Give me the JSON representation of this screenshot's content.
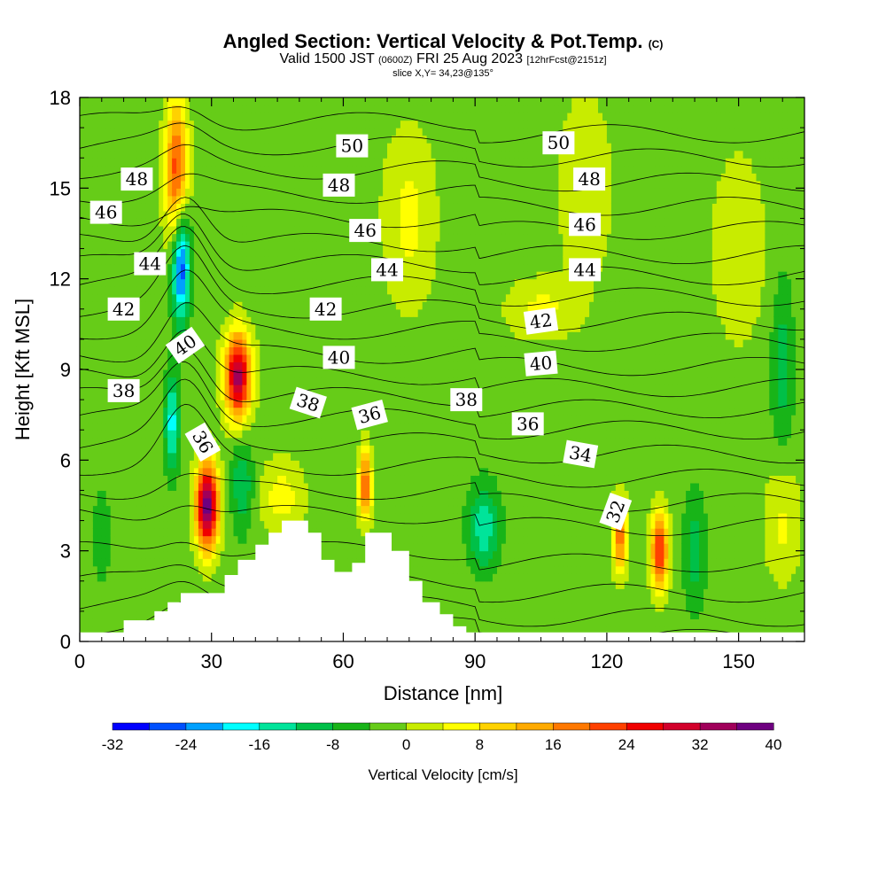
{
  "header": {
    "title": "Angled Section: Vertical Velocity & Pot.Temp.",
    "title_suffix": "(C)",
    "valid_prefix": "Valid 1500 JST",
    "valid_z": "(0600Z)",
    "valid_date": "FRI 25 Aug 2023",
    "forecast": "[12hrFcst@2151z]",
    "slice": "slice X,Y= 34,23@135°"
  },
  "chart_data": {
    "type": "heatmap",
    "xlabel": "Distance [nm]",
    "ylabel": "Height [Kft MSL]",
    "xlim": [
      0,
      165
    ],
    "ylim": [
      0,
      18
    ],
    "x_ticks": [
      "0",
      "30",
      "60",
      "90",
      "120",
      "150"
    ],
    "y_ticks": [
      "0",
      "3",
      "6",
      "9",
      "12",
      "15",
      "18"
    ],
    "x_tick_values": [
      0,
      30,
      60,
      90,
      120,
      150
    ],
    "y_tick_values": [
      0,
      3,
      6,
      9,
      12,
      15,
      18
    ],
    "colorbar": {
      "label": "Vertical Velocity [cm/s]",
      "min": -32,
      "max": 40,
      "step": 4,
      "tick_labels": [
        "-32",
        "-24",
        "-16",
        "-8",
        "0",
        "8",
        "16",
        "24",
        "32",
        "40"
      ],
      "tick_values": [
        -32,
        -24,
        -16,
        -8,
        0,
        8,
        16,
        24,
        32,
        40
      ],
      "colors": [
        "#0000ff",
        "#0050ff",
        "#00a0ff",
        "#00ffff",
        "#00e49a",
        "#00c048",
        "#18b418",
        "#66cc18",
        "#c8ec00",
        "#ffff00",
        "#ffd200",
        "#ffaa00",
        "#ff7800",
        "#ff4000",
        "#f00000",
        "#d2002a",
        "#a0005a",
        "#6e0080"
      ]
    },
    "background_value": -2,
    "vertical_velocity_cells": [
      {
        "x": 22,
        "y": 15.5,
        "v": 22,
        "sx": 2.5,
        "sy": 2.5
      },
      {
        "x": 23,
        "y": 12.5,
        "v": -30,
        "sx": 2,
        "sy": 1.8
      },
      {
        "x": 21,
        "y": 7.3,
        "v": -18,
        "sx": 1.6,
        "sy": 1.6
      },
      {
        "x": 36,
        "y": 8.8,
        "v": 34,
        "sx": 3,
        "sy": 1.4
      },
      {
        "x": 29,
        "y": 4.5,
        "v": 40,
        "sx": 2.5,
        "sy": 1.4
      },
      {
        "x": 37,
        "y": 5.2,
        "v": -12,
        "sx": 2.5,
        "sy": 1.5
      },
      {
        "x": 65,
        "y": 5.2,
        "v": 20,
        "sx": 1.5,
        "sy": 1.2
      },
      {
        "x": 92,
        "y": 3.8,
        "v": -15,
        "sx": 3.5,
        "sy": 1.4
      },
      {
        "x": 123,
        "y": 3.5,
        "v": 20,
        "sx": 1.5,
        "sy": 1.2
      },
      {
        "x": 132,
        "y": 3,
        "v": 24,
        "sx": 2,
        "sy": 1.3
      },
      {
        "x": 160,
        "y": 9,
        "v": -10,
        "sx": 2.5,
        "sy": 3
      },
      {
        "x": 75,
        "y": 14,
        "v": 5,
        "sx": 6,
        "sy": 3
      },
      {
        "x": 115,
        "y": 15,
        "v": 4,
        "sx": 6,
        "sy": 3
      },
      {
        "x": 150,
        "y": 13,
        "v": 4,
        "sx": 6,
        "sy": 3
      },
      {
        "x": 105,
        "y": 11,
        "v": 5,
        "sx": 8,
        "sy": 1
      },
      {
        "x": 160,
        "y": 4,
        "v": 5,
        "sx": 4,
        "sy": 2
      },
      {
        "x": 46,
        "y": 4.8,
        "v": 6,
        "sx": 5,
        "sy": 1.2
      },
      {
        "x": 5,
        "y": 3.5,
        "v": -8,
        "sx": 2,
        "sy": 1.5
      },
      {
        "x": 140,
        "y": 3,
        "v": -10,
        "sx": 2.5,
        "sy": 2
      }
    ],
    "terrain": [
      [
        0,
        0.3
      ],
      [
        10,
        0.3
      ],
      [
        10,
        0.7
      ],
      [
        17,
        0.7
      ],
      [
        17,
        1
      ],
      [
        20,
        1
      ],
      [
        20,
        1.3
      ],
      [
        23,
        1.3
      ],
      [
        23,
        1.6
      ],
      [
        33,
        1.6
      ],
      [
        33,
        2.2
      ],
      [
        36,
        2.2
      ],
      [
        36,
        2.7
      ],
      [
        40,
        2.7
      ],
      [
        40,
        3.2
      ],
      [
        43,
        3.2
      ],
      [
        43,
        3.6
      ],
      [
        46,
        3.6
      ],
      [
        46,
        4
      ],
      [
        52,
        4
      ],
      [
        52,
        3.6
      ],
      [
        55,
        3.6
      ],
      [
        55,
        2.7
      ],
      [
        58,
        2.7
      ],
      [
        58,
        2.3
      ],
      [
        62,
        2.3
      ],
      [
        62,
        2.6
      ],
      [
        65,
        2.6
      ],
      [
        65,
        3.6
      ],
      [
        71,
        3.6
      ],
      [
        71,
        3
      ],
      [
        75,
        3
      ],
      [
        75,
        2
      ],
      [
        78,
        2
      ],
      [
        78,
        1.3
      ],
      [
        82,
        1.3
      ],
      [
        82,
        0.9
      ],
      [
        85,
        0.9
      ],
      [
        85,
        0.5
      ],
      [
        88,
        0.5
      ],
      [
        88,
        0.3
      ],
      [
        165,
        0.3
      ]
    ],
    "theta_isentropes": [
      {
        "theta": 30,
        "z0": 0.5
      },
      {
        "theta": 31,
        "z0": 1.2
      },
      {
        "theta": 32,
        "z0": 2
      },
      {
        "theta": 33,
        "z0": 3
      },
      {
        "theta": 34,
        "z0": 4.2
      },
      {
        "theta": 35,
        "z0": 5
      },
      {
        "theta": 36,
        "z0": 5.8
      },
      {
        "theta": 37,
        "z0": 6.6
      },
      {
        "theta": 38,
        "z0": 7.4
      },
      {
        "theta": 39,
        "z0": 8.1
      },
      {
        "theta": 40,
        "z0": 8.8
      },
      {
        "theta": 41,
        "z0": 9.5
      },
      {
        "theta": 42,
        "z0": 10.3
      },
      {
        "theta": 43,
        "z0": 11
      },
      {
        "theta": 44,
        "z0": 11.8
      },
      {
        "theta": 45,
        "z0": 12.5
      },
      {
        "theta": 46,
        "z0": 13.2
      },
      {
        "theta": 47,
        "z0": 14
      },
      {
        "theta": 48,
        "z0": 14.8
      },
      {
        "theta": 49,
        "z0": 15.6
      },
      {
        "theta": 50,
        "z0": 16.4
      },
      {
        "theta": 51,
        "z0": 17.2
      }
    ],
    "contour_labels": [
      {
        "text": "48",
        "x": 13,
        "y": 15.3,
        "rot": 0
      },
      {
        "text": "46",
        "x": 6,
        "y": 14.2,
        "rot": 0
      },
      {
        "text": "44",
        "x": 16,
        "y": 12.5,
        "rot": 0
      },
      {
        "text": "42",
        "x": 10,
        "y": 11,
        "rot": 0
      },
      {
        "text": "40",
        "x": 24,
        "y": 9.8,
        "rot": -35
      },
      {
        "text": "38",
        "x": 10,
        "y": 8.3,
        "rot": 0
      },
      {
        "text": "36",
        "x": 28,
        "y": 6.6,
        "rot": 60
      },
      {
        "text": "50",
        "x": 62,
        "y": 16.4,
        "rot": 0
      },
      {
        "text": "48",
        "x": 59,
        "y": 15.1,
        "rot": 0
      },
      {
        "text": "46",
        "x": 65,
        "y": 13.6,
        "rot": 0
      },
      {
        "text": "44",
        "x": 70,
        "y": 12.3,
        "rot": 0
      },
      {
        "text": "42",
        "x": 56,
        "y": 11,
        "rot": 0
      },
      {
        "text": "40",
        "x": 59,
        "y": 9.4,
        "rot": 0
      },
      {
        "text": "38",
        "x": 52,
        "y": 7.9,
        "rot": 18
      },
      {
        "text": "36",
        "x": 66,
        "y": 7.5,
        "rot": -15
      },
      {
        "text": "38",
        "x": 88,
        "y": 8,
        "rot": 0
      },
      {
        "text": "50",
        "x": 109,
        "y": 16.5,
        "rot": 0
      },
      {
        "text": "48",
        "x": 116,
        "y": 15.3,
        "rot": 0
      },
      {
        "text": "46",
        "x": 115,
        "y": 13.8,
        "rot": 0
      },
      {
        "text": "44",
        "x": 115,
        "y": 12.3,
        "rot": 0
      },
      {
        "text": "42",
        "x": 105,
        "y": 10.6,
        "rot": -8
      },
      {
        "text": "40",
        "x": 105,
        "y": 9.2,
        "rot": -5
      },
      {
        "text": "36",
        "x": 102,
        "y": 7.2,
        "rot": 0
      },
      {
        "text": "34",
        "x": 114,
        "y": 6.2,
        "rot": 10
      },
      {
        "text": "32",
        "x": 122,
        "y": 4.3,
        "rot": -70
      }
    ]
  }
}
